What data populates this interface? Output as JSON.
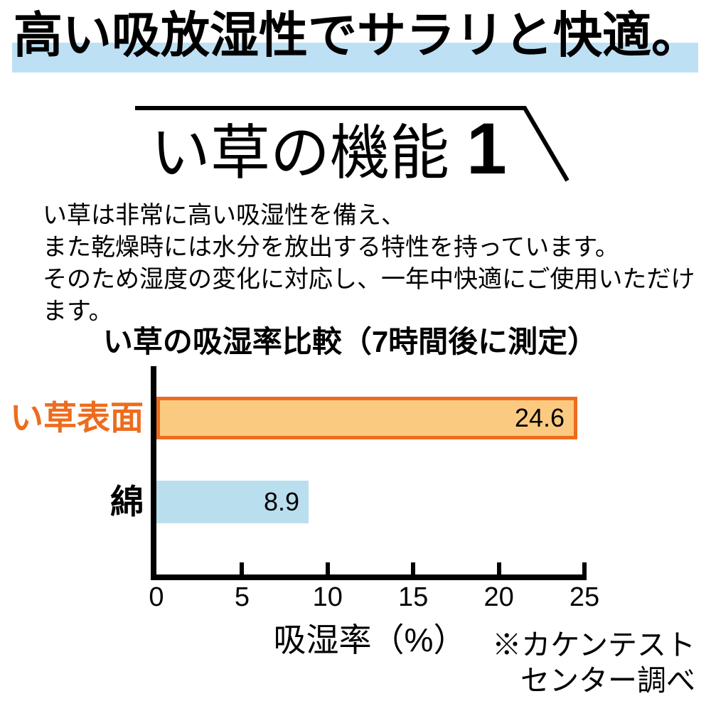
{
  "header": {
    "title": "高い吸放湿性でサラリと快適。",
    "highlight_color": "#BEE0F5"
  },
  "function_title": {
    "text": "い草の機能",
    "number": "1"
  },
  "description": {
    "lines": [
      "い草は非常に高い吸湿性を備え、",
      "また乾燥時には水分を放出する特性を持っています。",
      "そのため湿度の変化に対応し、一年中快適にご使用いただけます。"
    ]
  },
  "chart_data": {
    "type": "bar",
    "orientation": "horizontal",
    "title": "い草の吸湿率比較（7時間後に測定）",
    "categories": [
      "い草表面",
      "綿"
    ],
    "values": [
      24.6,
      8.9
    ],
    "value_labels": [
      "24.6",
      "8.9"
    ],
    "xlabel": "吸湿率（%）",
    "xlim": [
      0,
      25
    ],
    "xticks": [
      0,
      5,
      10,
      15,
      20,
      25
    ],
    "grid": false,
    "bar_fill_colors": [
      "#FBCA81",
      "#B9DFEF"
    ],
    "bar_border_colors": [
      "#ED6C1E",
      "none"
    ],
    "category_label_colors": [
      "#ED6C1E",
      "#000000"
    ],
    "axis_color": "#000000",
    "source_note_lines": [
      "※カケンテスト",
      "センター調べ"
    ]
  }
}
